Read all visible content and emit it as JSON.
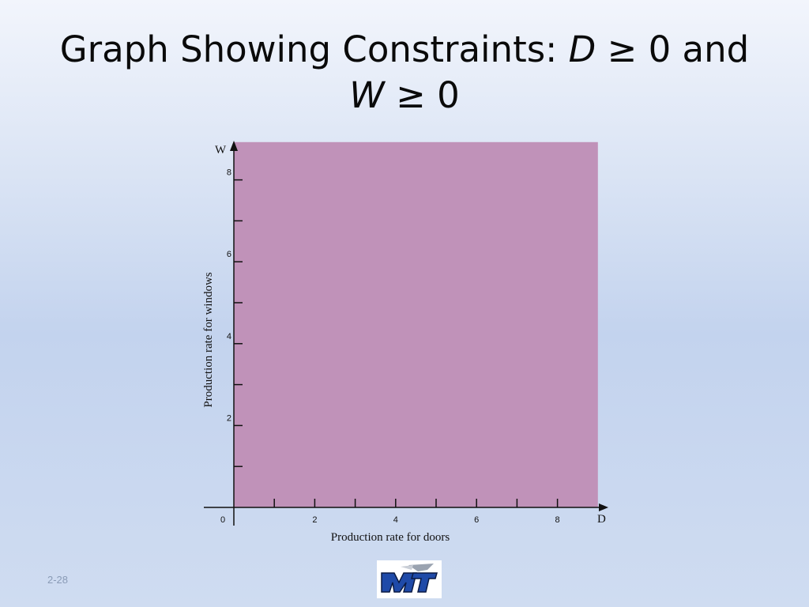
{
  "slide": {
    "title_line1_text": "Graph Showing Constraints: ",
    "title_var1": "D",
    "title_op1": " ≥ 0 and",
    "title_var2": "W",
    "title_op2": " ≥ 0",
    "page_number": "2-28"
  },
  "colors": {
    "feasible_region": "#c092b9",
    "axis": "#111111"
  },
  "chart_data": {
    "type": "area",
    "title": "",
    "xlabel": "Production rate for doors",
    "ylabel": "Production rate for windows",
    "x_axis_letter": "D",
    "y_axis_letter": "W",
    "xlim": [
      0,
      9
    ],
    "ylim": [
      0,
      9
    ],
    "x_ticks": [
      1,
      2,
      3,
      4,
      5,
      6,
      7,
      8
    ],
    "y_ticks": [
      1,
      2,
      3,
      4,
      5,
      6,
      7,
      8
    ],
    "x_tick_labels": [
      {
        "value": 2,
        "label": "2"
      },
      {
        "value": 4,
        "label": "4"
      },
      {
        "value": 6,
        "label": "6"
      },
      {
        "value": 8,
        "label": "8"
      }
    ],
    "y_tick_labels": [
      {
        "value": 2,
        "label": "2"
      },
      {
        "value": 4,
        "label": "4"
      },
      {
        "value": 6,
        "label": "6"
      },
      {
        "value": 8,
        "label": "8"
      }
    ],
    "origin_label": "0",
    "shaded_region": {
      "x": [
        0,
        9
      ],
      "y": [
        0,
        9
      ]
    },
    "grid": false
  }
}
